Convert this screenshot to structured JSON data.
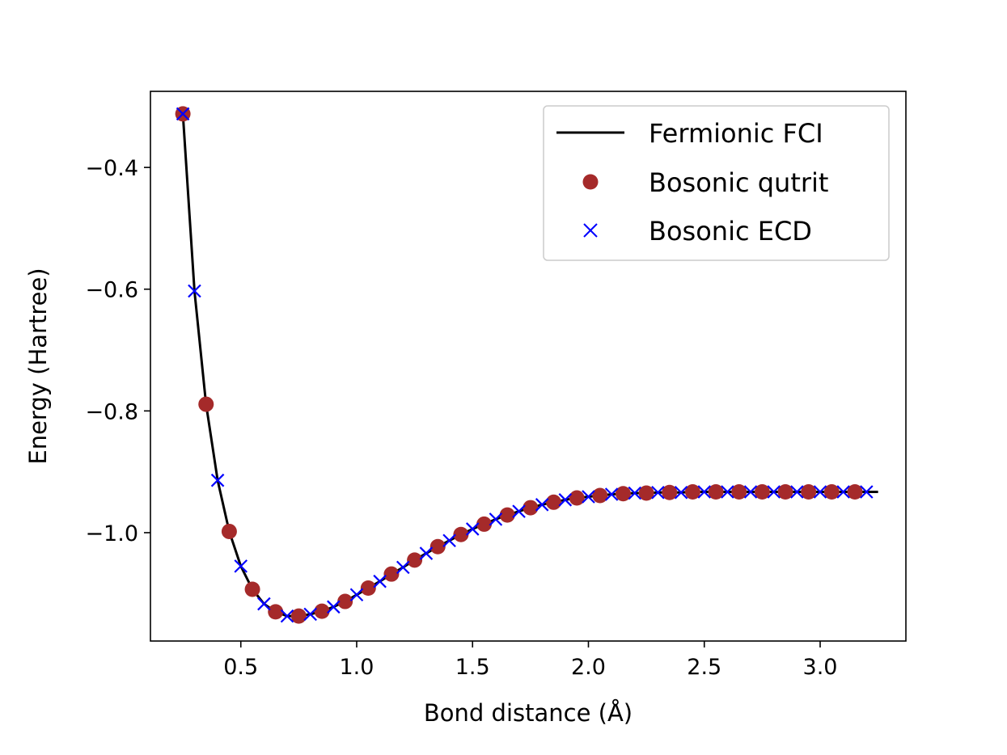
{
  "chart_data": {
    "type": "line",
    "title": "",
    "xlabel": "Bond distance (Å)",
    "ylabel": "Energy (Hartree)",
    "xlim": [
      0.11,
      3.37
    ],
    "ylim": [
      -1.178,
      -0.275
    ],
    "xticks": [
      0.5,
      1.0,
      1.5,
      2.0,
      2.5,
      3.0
    ],
    "xtick_labels": [
      "0.5",
      "1.0",
      "1.5",
      "2.0",
      "2.5",
      "3.0"
    ],
    "yticks": [
      -0.4,
      -0.6,
      -0.8,
      -1.0
    ],
    "ytick_labels": [
      "−0.4",
      "−0.6",
      "−0.8",
      "−1.0"
    ],
    "legend_position": "top-right",
    "colors": {
      "fci": "#000000",
      "qutrit": "#a52a2a",
      "ecd": "#0000ff"
    },
    "series": [
      {
        "name": "Fermionic FCI",
        "style": "line",
        "x": [
          0.25,
          0.3,
          0.35,
          0.4,
          0.45,
          0.5,
          0.55,
          0.6,
          0.65,
          0.7,
          0.75,
          0.8,
          0.85,
          0.9,
          0.95,
          1.0,
          1.05,
          1.1,
          1.15,
          1.2,
          1.25,
          1.3,
          1.35,
          1.4,
          1.45,
          1.5,
          1.55,
          1.6,
          1.65,
          1.7,
          1.75,
          1.8,
          1.85,
          1.9,
          1.95,
          2.0,
          2.05,
          2.1,
          2.15,
          2.2,
          2.25,
          2.3,
          2.35,
          2.4,
          2.45,
          2.5,
          2.55,
          2.6,
          2.65,
          2.7,
          2.75,
          2.8,
          2.85,
          2.9,
          2.95,
          3.0,
          3.05,
          3.1,
          3.15,
          3.2,
          3.25
        ],
        "y": [
          -0.312,
          -0.603,
          -0.789,
          -0.914,
          -0.998,
          -1.055,
          -1.093,
          -1.117,
          -1.13,
          -1.137,
          -1.137,
          -1.134,
          -1.129,
          -1.122,
          -1.113,
          -1.102,
          -1.091,
          -1.08,
          -1.068,
          -1.057,
          -1.045,
          -1.034,
          -1.023,
          -1.013,
          -1.003,
          -0.994,
          -0.986,
          -0.978,
          -0.971,
          -0.965,
          -0.959,
          -0.954,
          -0.95,
          -0.946,
          -0.943,
          -0.941,
          -0.939,
          -0.937,
          -0.936,
          -0.935,
          -0.935,
          -0.934,
          -0.934,
          -0.934,
          -0.933,
          -0.933,
          -0.933,
          -0.933,
          -0.933,
          -0.933,
          -0.933,
          -0.933,
          -0.933,
          -0.933,
          -0.933,
          -0.933,
          -0.933,
          -0.933,
          -0.933,
          -0.933,
          -0.933
        ]
      },
      {
        "name": "Bosonic qutrit",
        "style": "circle",
        "x": [
          0.25,
          0.35,
          0.45,
          0.55,
          0.65,
          0.75,
          0.85,
          0.95,
          1.05,
          1.15,
          1.25,
          1.35,
          1.45,
          1.55,
          1.65,
          1.75,
          1.85,
          1.95,
          2.05,
          2.15,
          2.25,
          2.35,
          2.45,
          2.55,
          2.65,
          2.75,
          2.85,
          2.95,
          3.05,
          3.15
        ],
        "y": [
          -0.312,
          -0.789,
          -0.998,
          -1.093,
          -1.13,
          -1.137,
          -1.129,
          -1.113,
          -1.091,
          -1.068,
          -1.045,
          -1.023,
          -1.003,
          -0.986,
          -0.971,
          -0.959,
          -0.95,
          -0.943,
          -0.939,
          -0.936,
          -0.935,
          -0.934,
          -0.933,
          -0.933,
          -0.933,
          -0.933,
          -0.933,
          -0.933,
          -0.933,
          -0.933
        ]
      },
      {
        "name": "Bosonic ECD",
        "style": "x",
        "x": [
          0.25,
          0.3,
          0.4,
          0.5,
          0.6,
          0.7,
          0.8,
          0.9,
          1.0,
          1.1,
          1.2,
          1.3,
          1.4,
          1.5,
          1.6,
          1.7,
          1.8,
          1.9,
          2.0,
          2.1,
          2.2,
          2.3,
          2.4,
          2.5,
          2.6,
          2.7,
          2.8,
          2.9,
          3.0,
          3.1,
          3.2
        ],
        "y": [
          -0.312,
          -0.603,
          -0.914,
          -1.055,
          -1.117,
          -1.137,
          -1.134,
          -1.122,
          -1.102,
          -1.08,
          -1.057,
          -1.034,
          -1.013,
          -0.994,
          -0.978,
          -0.965,
          -0.954,
          -0.946,
          -0.941,
          -0.937,
          -0.935,
          -0.934,
          -0.934,
          -0.933,
          -0.933,
          -0.933,
          -0.933,
          -0.933,
          -0.933,
          -0.933,
          -0.933
        ]
      }
    ]
  }
}
